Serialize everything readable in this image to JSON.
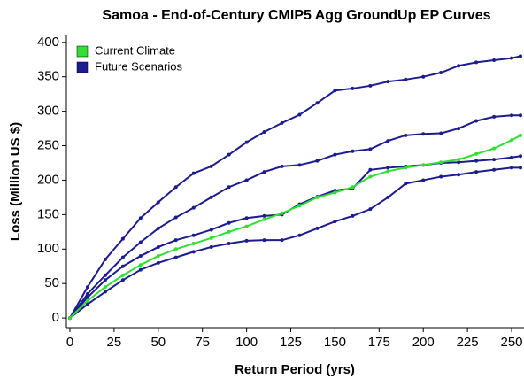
{
  "chart_data": {
    "type": "line",
    "title": "Samoa - End-of-Century CMIP5 Agg GroundUp EP Curves",
    "xlabel": "Return Period (yrs)",
    "ylabel": "Loss (Million US $)",
    "x": [
      0,
      10,
      20,
      30,
      40,
      50,
      60,
      70,
      80,
      90,
      100,
      110,
      120,
      130,
      140,
      150,
      160,
      170,
      180,
      190,
      200,
      210,
      220,
      230,
      240,
      250,
      255
    ],
    "series": [
      {
        "name": "Future Scenarios",
        "color": "#1c1c8e",
        "values": [
          0,
          45,
          85,
          115,
          145,
          168,
          190,
          210,
          220,
          237,
          255,
          270,
          283,
          295,
          312,
          330,
          333,
          337,
          343,
          346,
          350,
          356,
          366,
          371,
          374,
          377,
          380
        ]
      },
      {
        "color": "#1c1c8e",
        "values": [
          0,
          35,
          62,
          88,
          110,
          130,
          146,
          160,
          175,
          190,
          200,
          212,
          220,
          222,
          228,
          237,
          242,
          245,
          257,
          265,
          267,
          268,
          275,
          286,
          292,
          294,
          294
        ]
      },
      {
        "color": "#1c1c8e",
        "values": [
          0,
          30,
          55,
          75,
          90,
          103,
          113,
          120,
          128,
          138,
          145,
          148,
          150,
          165,
          176,
          185,
          188,
          215,
          218,
          220,
          222,
          225,
          226,
          228,
          230,
          233,
          235
        ]
      },
      {
        "color": "#1c1c8e",
        "values": [
          0,
          20,
          38,
          55,
          70,
          80,
          88,
          96,
          103,
          108,
          112,
          113,
          113,
          120,
          130,
          140,
          148,
          158,
          175,
          195,
          200,
          205,
          208,
          212,
          215,
          218,
          218
        ]
      },
      {
        "name": "Current Climate",
        "color": "#33dd33",
        "values": [
          0,
          25,
          45,
          62,
          77,
          90,
          100,
          108,
          116,
          125,
          133,
          143,
          152,
          163,
          175,
          182,
          190,
          205,
          213,
          218,
          222,
          226,
          230,
          238,
          246,
          258,
          265
        ]
      }
    ],
    "legend_order": [
      4,
      0
    ],
    "xlim": [
      -2,
      257
    ],
    "ylim": [
      -14,
      410
    ],
    "xticks": [
      0,
      25,
      50,
      75,
      100,
      125,
      150,
      175,
      200,
      225,
      250
    ],
    "yticks": [
      0,
      50,
      100,
      150,
      200,
      250,
      300,
      350,
      400
    ],
    "legend": "upper left"
  }
}
